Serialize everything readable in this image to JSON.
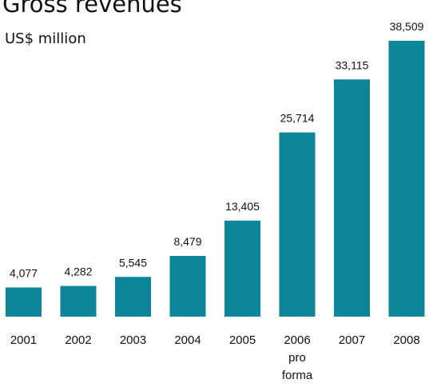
{
  "chart_data": {
    "type": "bar",
    "title": "Gross revenues",
    "subtitle": "US$ million",
    "categories": [
      [
        "2001"
      ],
      [
        "2002"
      ],
      [
        "2003"
      ],
      [
        "2004"
      ],
      [
        "2005"
      ],
      [
        "2006",
        "pro",
        "forma"
      ],
      [
        "2007"
      ],
      [
        "2008"
      ]
    ],
    "values": [
      4077,
      4282,
      5545,
      8479,
      13405,
      25714,
      33115,
      38509
    ],
    "value_labels": [
      "4,077",
      "4,282",
      "5,545",
      "8,479",
      "13,405",
      "25,714",
      "33,115",
      "38,509"
    ],
    "bar_color": "#0e8699",
    "xlabel": "",
    "ylabel": "",
    "ylim": [
      0,
      40000
    ],
    "grid": false,
    "legend": "none"
  }
}
